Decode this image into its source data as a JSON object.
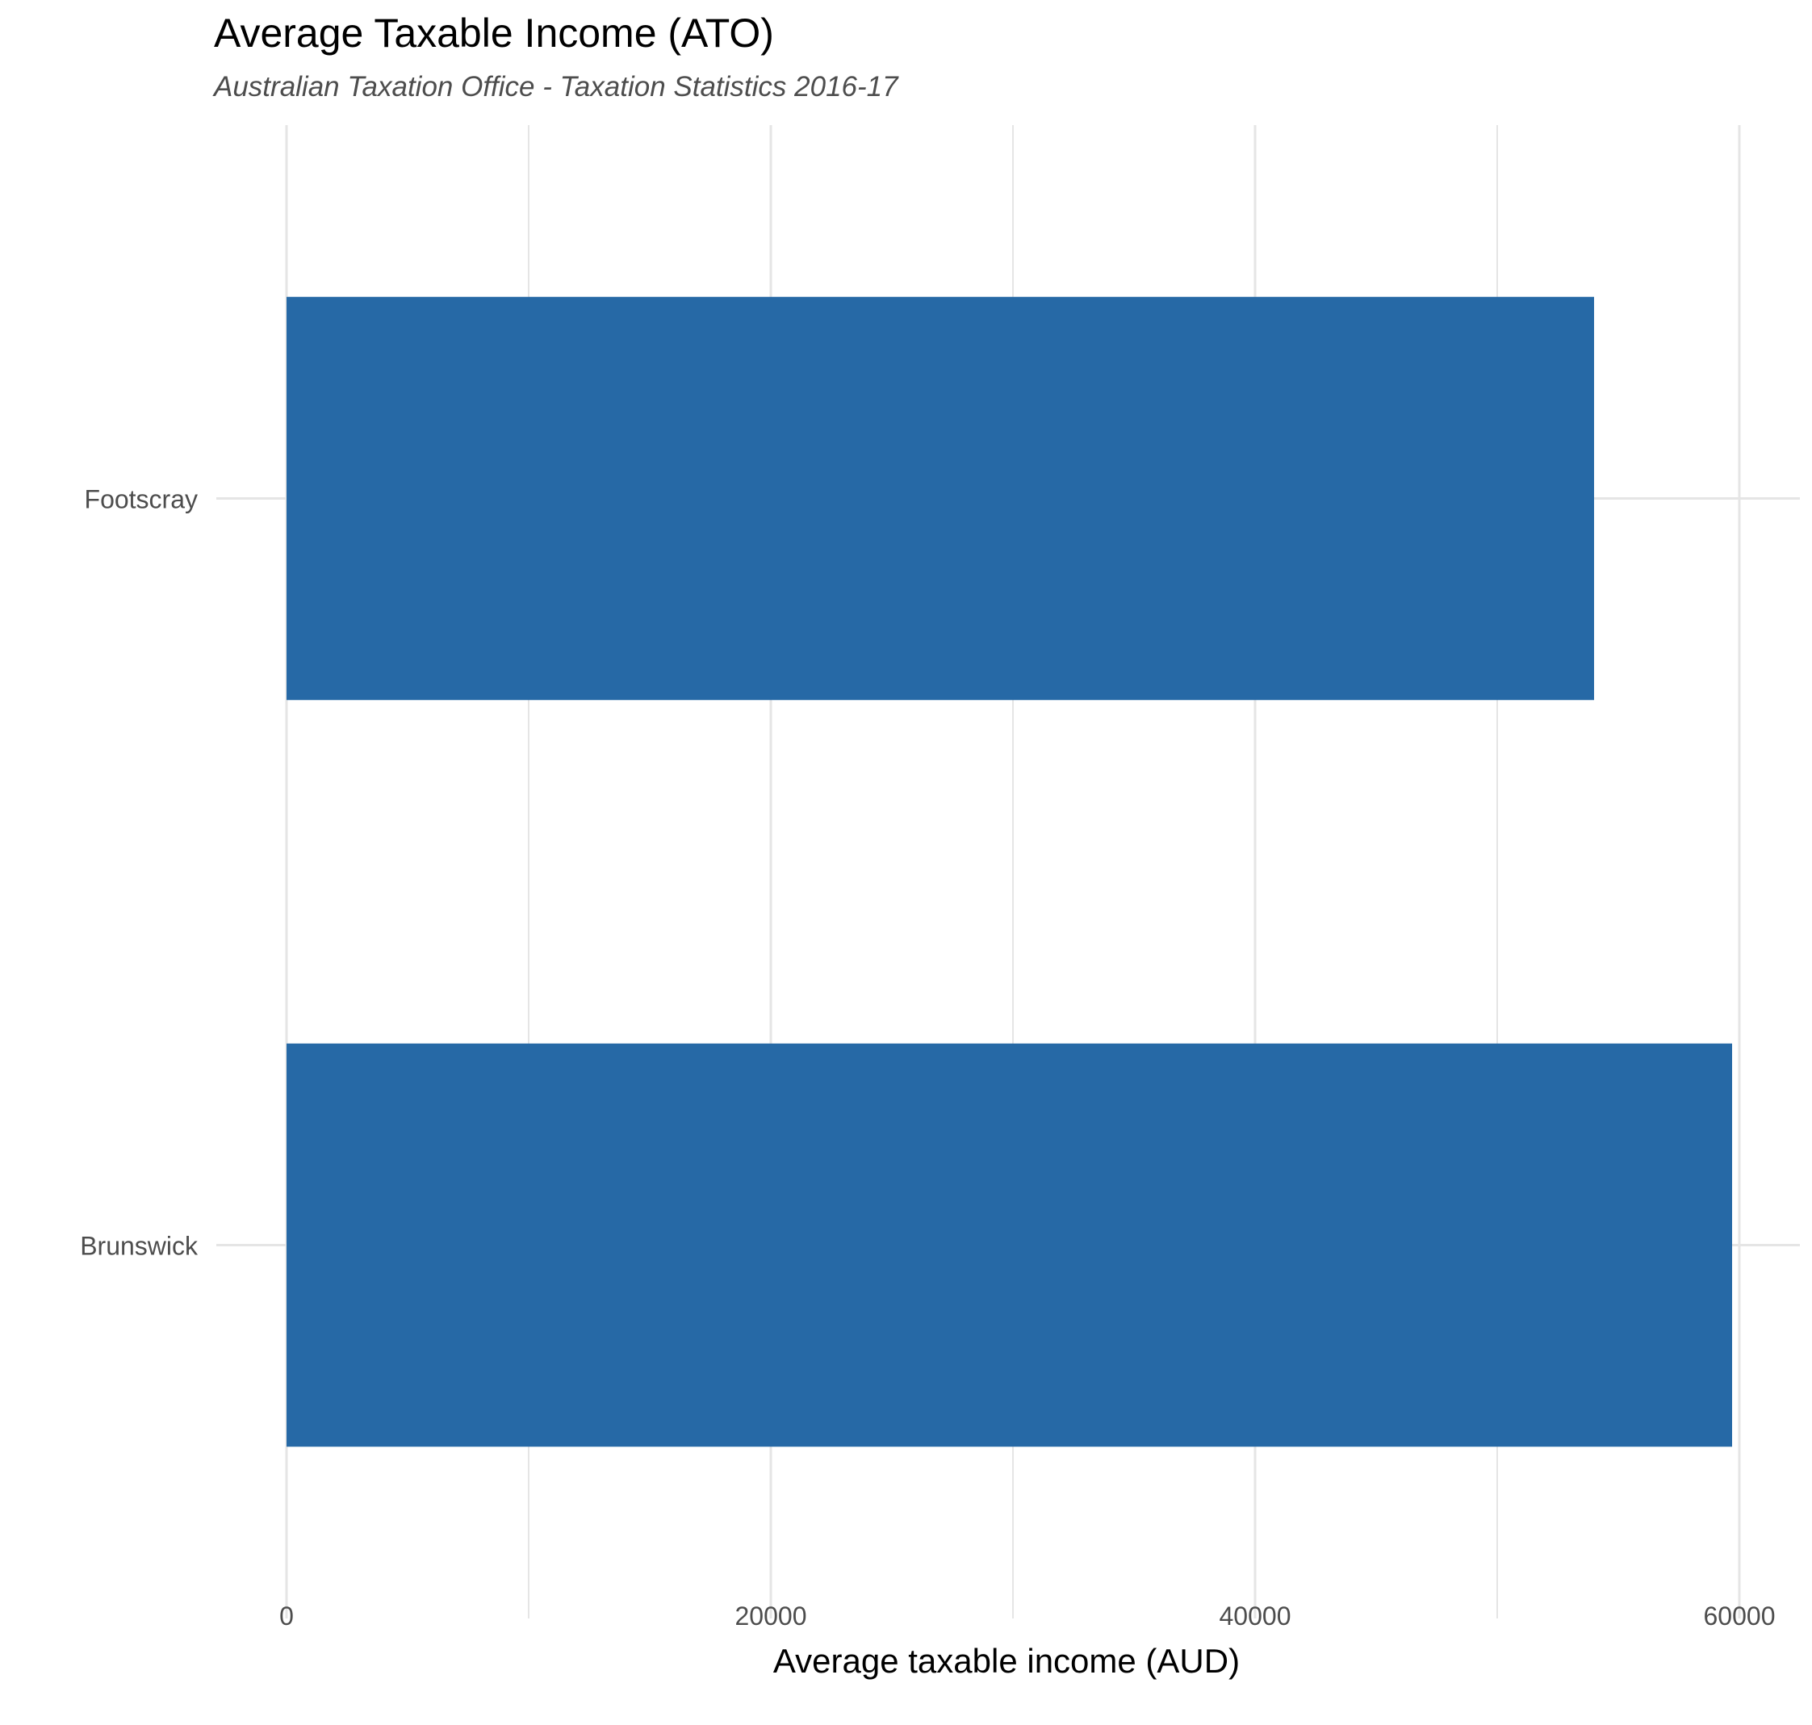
{
  "chart_data": {
    "type": "bar",
    "orientation": "horizontal",
    "title": "Average Taxable Income (ATO)",
    "subtitle": "Australian Taxation Office - Taxation Statistics 2016-17",
    "xlabel": "Average taxable income (AUD)",
    "ylabel": "",
    "categories": [
      "Brunswick",
      "Footscray"
    ],
    "values": [
      59700,
      54000
    ],
    "xlim": [
      0,
      60000
    ],
    "xticks": [
      0,
      20000,
      40000,
      60000
    ],
    "xtick_labels": [
      "0",
      "20000",
      "40000",
      "60000"
    ],
    "grid": true,
    "bar_color": "#2669a6",
    "grid_color": "#e5e5e5"
  }
}
